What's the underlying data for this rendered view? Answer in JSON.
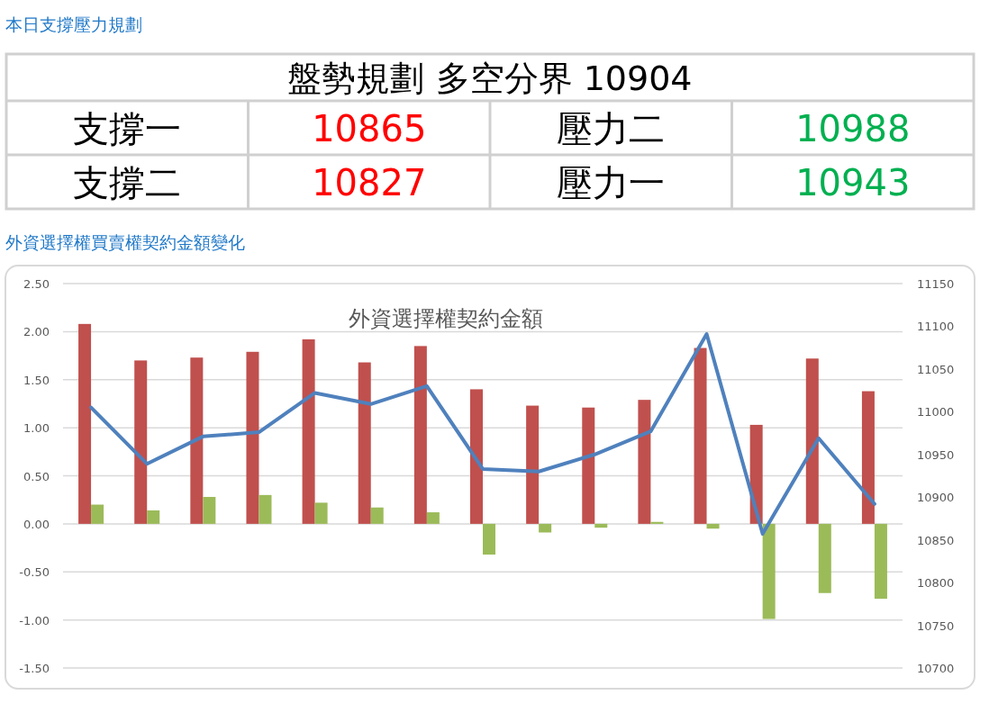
{
  "chart_data": [
    {
      "type": "other",
      "title": "本日支撐壓力規劃",
      "annotations": [
        "盤勢規劃 多空分界 10904",
        "支撐一",
        "10865",
        "壓力二",
        "10988",
        "支撐二",
        "10827",
        "壓力一",
        "10943"
      ]
    },
    {
      "type": "bar",
      "title": "外資選擇權契約金額",
      "annotations": [
        "外資選擇權買賣權契約金額變化"
      ],
      "categories": [
        null,
        null,
        null,
        null,
        null,
        null,
        null,
        null,
        null,
        null,
        null,
        null,
        null,
        null,
        null
      ],
      "series": [
        {
          "type": "bar",
          "color": "#c0504d",
          "values": [
            2.08,
            1.7,
            1.73,
            1.79,
            1.92,
            1.68,
            1.85,
            1.4,
            1.23,
            1.21,
            1.29,
            1.83,
            1.03,
            1.72,
            1.38
          ]
        },
        {
          "type": "bar",
          "color": "#9bbb59",
          "values": [
            0.2,
            0.14,
            0.28,
            0.3,
            0.22,
            0.17,
            0.12,
            -0.32,
            -0.09,
            -0.04,
            0.02,
            -0.05,
            -0.99,
            -0.72,
            -0.78
          ]
        },
        {
          "type": "line",
          "axis": "y2",
          "color": "#4f81bd",
          "values": [
            11005,
            10939,
            10971,
            10976,
            11022,
            11009,
            11030,
            10933,
            10930,
            10950,
            10977,
            11091,
            10857,
            10969,
            10892
          ]
        }
      ],
      "ylim": [
        -1.5,
        2.5
      ],
      "yticks": [
        {
          "value": 2.5,
          "label": "2.50"
        },
        {
          "value": 2,
          "label": "2.00"
        },
        {
          "value": 1.5,
          "label": "1.50"
        },
        {
          "value": 1,
          "label": "1.00"
        },
        {
          "value": 0.5,
          "label": "0.50"
        },
        {
          "value": 0,
          "label": "0.00"
        },
        {
          "value": -0.5,
          "label": "-0.50"
        },
        {
          "value": -1,
          "label": "-1.00"
        },
        {
          "value": -1.5,
          "label": "-1.50"
        }
      ],
      "y2lim": [
        10700,
        11150
      ],
      "y2ticks": [
        11150,
        11100,
        11050,
        11000,
        10950,
        10900,
        10850,
        10800,
        10750,
        10700
      ],
      "grid": "y"
    }
  ]
}
